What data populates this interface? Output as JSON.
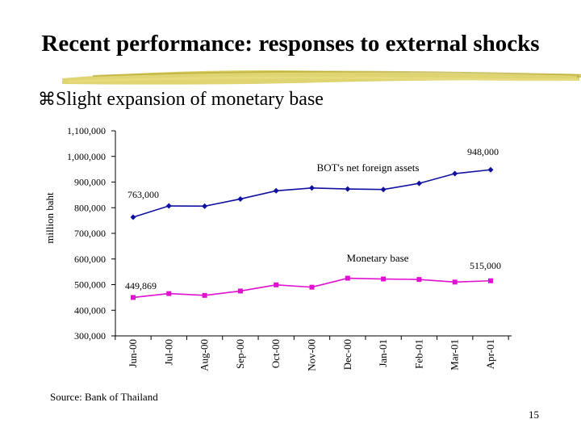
{
  "slide": {
    "title": "Recent performance: responses to external shocks",
    "bullet": "Slight expansion of monetary base",
    "source": "Source: Bank of Thailand",
    "page_number": "15"
  },
  "chart_data": {
    "type": "line",
    "ylabel": "million baht",
    "ylim": [
      300000,
      1100000
    ],
    "yticks": [
      300000,
      400000,
      500000,
      600000,
      700000,
      800000,
      900000,
      1000000,
      1100000
    ],
    "ytick_labels": [
      "300,000",
      "400,000",
      "500,000",
      "600,000",
      "700,000",
      "800,000",
      "900,000",
      "1,000,000",
      "1,100,000"
    ],
    "categories": [
      "Jun-00",
      "Jul-00",
      "Aug-00",
      "Sep-00",
      "Oct-00",
      "Nov-00",
      "Dec-00",
      "Jan-01",
      "Feb-01",
      "Mar-01",
      "Apr-01"
    ],
    "series": [
      {
        "name": "BOT's net foreign assets",
        "color": "#1010a0",
        "marker": "diamond",
        "values": [
          763000,
          807000,
          806000,
          834000,
          866000,
          877000,
          873000,
          871000,
          895000,
          933000,
          948000
        ]
      },
      {
        "name": "Monetary base",
        "color": "#e010d0",
        "marker": "square",
        "values": [
          449869,
          465000,
          458000,
          475000,
          499000,
          490000,
          525000,
          522000,
          520000,
          510000,
          515000
        ]
      }
    ],
    "annotations": [
      "763,000",
      "948,000",
      "449,869",
      "515,000"
    ],
    "grid": false,
    "legend": "none"
  }
}
